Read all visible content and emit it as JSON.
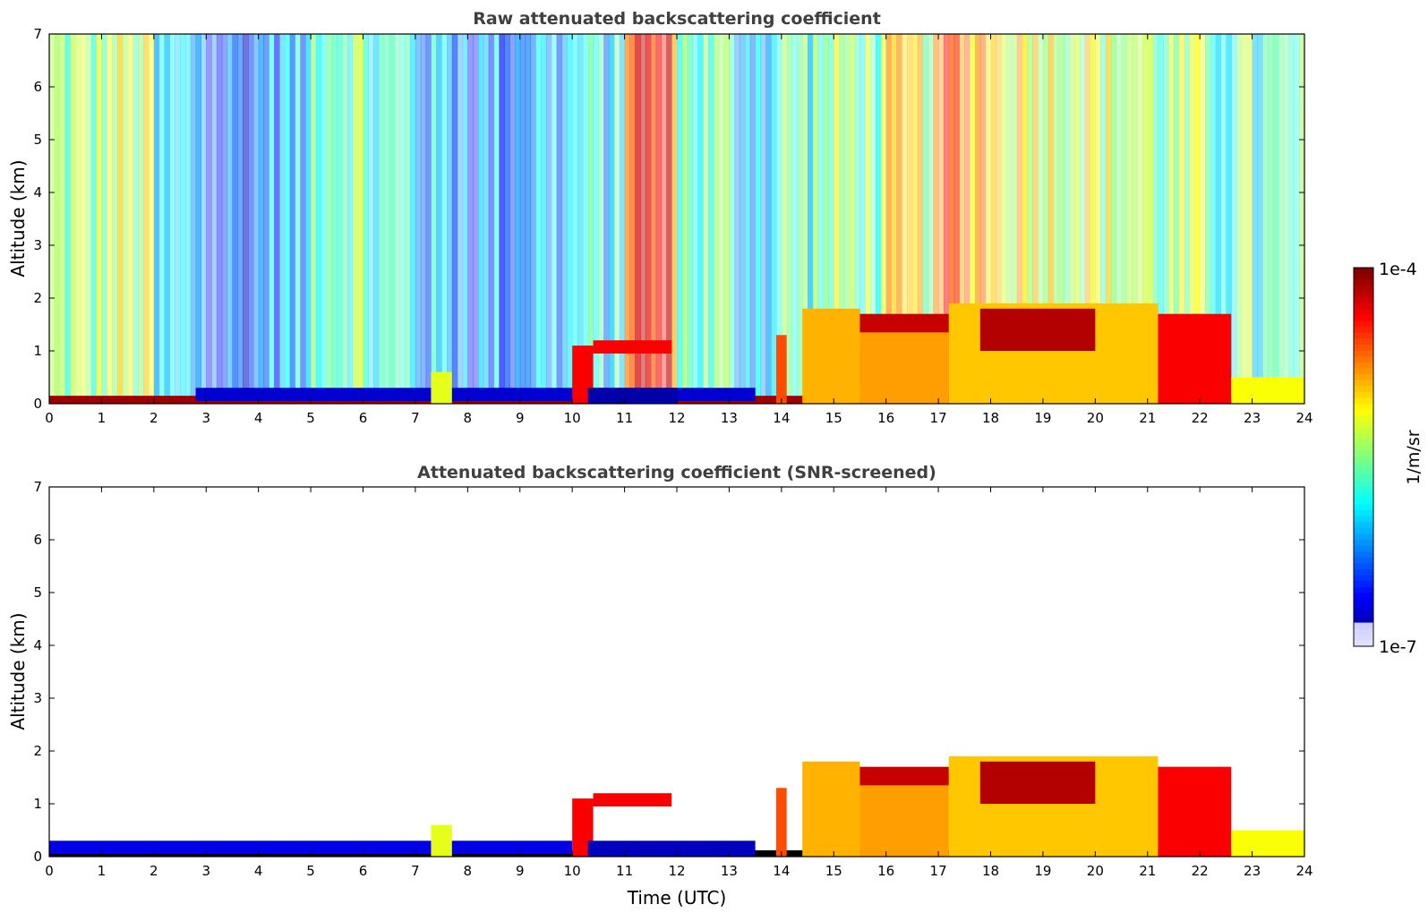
{
  "chart_data": [
    {
      "type": "heatmap",
      "title": "Raw attenuated backscattering coefficient",
      "xlabel": "",
      "ylabel": "Altitude (km)",
      "xlim": [
        0,
        24
      ],
      "ylim": [
        0,
        7
      ],
      "xticks": [
        "0",
        "1",
        "2",
        "3",
        "4",
        "5",
        "6",
        "7",
        "8",
        "9",
        "10",
        "11",
        "12",
        "13",
        "14",
        "15",
        "16",
        "17",
        "18",
        "19",
        "20",
        "21",
        "22",
        "23",
        "24"
      ],
      "yticks": [
        "0",
        "1",
        "2",
        "3",
        "4",
        "5",
        "6",
        "7"
      ],
      "background_noise_level_by_hour": [
        0.5,
        0.55,
        0.3,
        0.2,
        0.28,
        0.5,
        0.4,
        0.3,
        0.25,
        0.3,
        0.35,
        0.85,
        0.45,
        0.35,
        0.45,
        0.5,
        0.6,
        0.75,
        0.65,
        0.6,
        0.55,
        0.5,
        0.45,
        0.4
      ],
      "features": [
        {
          "name": "surface layer",
          "x": [
            0,
            24
          ],
          "y": [
            0,
            0.15
          ],
          "level": 0.97
        },
        {
          "name": "boundary layer",
          "x": [
            2.8,
            13.5
          ],
          "y": [
            0.05,
            0.3
          ],
          "level": 0.08
        },
        {
          "name": "aerosol plume",
          "x": [
            7.3,
            7.7
          ],
          "y": [
            0,
            0.6
          ],
          "level": 0.6
        },
        {
          "name": "low cloud",
          "x": [
            10.0,
            10.4
          ],
          "y": [
            0,
            1.1
          ],
          "level": 0.88
        },
        {
          "name": "elevated cloud",
          "x": [
            10.4,
            11.9
          ],
          "y": [
            0.95,
            1.2
          ],
          "level": 0.88
        },
        {
          "name": "boundary layer",
          "x": [
            10.3,
            12.0
          ],
          "y": [
            0,
            0.3
          ],
          "level": 0.04
        },
        {
          "name": "cloud column",
          "x": [
            13.9,
            14.1
          ],
          "y": [
            0,
            1.3
          ],
          "level": 0.8
        },
        {
          "name": "aerosol column",
          "x": [
            14.4,
            15.5
          ],
          "y": [
            0,
            1.8
          ],
          "level": 0.7
        },
        {
          "name": "aerosol layer",
          "x": [
            15.5,
            17.2
          ],
          "y": [
            0,
            1.6
          ],
          "level": 0.72
        },
        {
          "name": "cloud top",
          "x": [
            15.5,
            17.2
          ],
          "y": [
            1.35,
            1.7
          ],
          "level": 0.93
        },
        {
          "name": "aerosol layer",
          "x": [
            17.2,
            21.2
          ],
          "y": [
            0,
            1.9
          ],
          "level": 0.68
        },
        {
          "name": "cloud top",
          "x": [
            17.8,
            20.0
          ],
          "y": [
            1.0,
            1.8
          ],
          "level": 0.95
        },
        {
          "name": "cloud column",
          "x": [
            21.2,
            22.6
          ],
          "y": [
            0,
            1.7
          ],
          "level": 0.88
        },
        {
          "name": "aerosol layer",
          "x": [
            22.6,
            24.0
          ],
          "y": [
            0,
            0.5
          ],
          "level": 0.62
        }
      ]
    },
    {
      "type": "heatmap",
      "title": "Attenuated backscattering coefficient (SNR-screened)",
      "xlabel": "Time (UTC)",
      "ylabel": "Altitude (km)",
      "xlim": [
        0,
        24
      ],
      "ylim": [
        0,
        7
      ],
      "xticks": [
        "0",
        "1",
        "2",
        "3",
        "4",
        "5",
        "6",
        "7",
        "8",
        "9",
        "10",
        "11",
        "12",
        "13",
        "14",
        "15",
        "16",
        "17",
        "18",
        "19",
        "20",
        "21",
        "22",
        "23",
        "24"
      ],
      "yticks": [
        "0",
        "1",
        "2",
        "3",
        "4",
        "5",
        "6",
        "7"
      ],
      "features": [
        {
          "name": "surface layer",
          "x": [
            0,
            24
          ],
          "y": [
            0,
            0.12
          ],
          "level": 0.0
        },
        {
          "name": "boundary layer",
          "x": [
            0,
            10.0
          ],
          "y": [
            0.05,
            0.3
          ],
          "level": 0.1
        },
        {
          "name": "aerosol plume",
          "x": [
            7.3,
            7.7
          ],
          "y": [
            0,
            0.6
          ],
          "level": 0.6
        },
        {
          "name": "low cloud",
          "x": [
            10.0,
            10.4
          ],
          "y": [
            0,
            1.1
          ],
          "level": 0.88
        },
        {
          "name": "elevated cloud",
          "x": [
            10.4,
            11.9
          ],
          "y": [
            0.95,
            1.2
          ],
          "level": 0.88
        },
        {
          "name": "boundary layer",
          "x": [
            10.3,
            13.5
          ],
          "y": [
            0,
            0.3
          ],
          "level": 0.06
        },
        {
          "name": "cloud column",
          "x": [
            13.9,
            14.1
          ],
          "y": [
            0,
            1.3
          ],
          "level": 0.8
        },
        {
          "name": "aerosol column",
          "x": [
            14.4,
            15.5
          ],
          "y": [
            0,
            1.8
          ],
          "level": 0.7
        },
        {
          "name": "aerosol layer",
          "x": [
            15.5,
            17.2
          ],
          "y": [
            0,
            1.6
          ],
          "level": 0.72
        },
        {
          "name": "cloud top",
          "x": [
            15.5,
            17.2
          ],
          "y": [
            1.35,
            1.7
          ],
          "level": 0.93
        },
        {
          "name": "aerosol layer",
          "x": [
            17.2,
            21.2
          ],
          "y": [
            0,
            1.9
          ],
          "level": 0.68
        },
        {
          "name": "cloud top",
          "x": [
            17.8,
            20.0
          ],
          "y": [
            1.0,
            1.8
          ],
          "level": 0.95
        },
        {
          "name": "cloud column",
          "x": [
            21.2,
            22.6
          ],
          "y": [
            0,
            1.7
          ],
          "level": 0.88
        },
        {
          "name": "aerosol layer",
          "x": [
            22.6,
            24.0
          ],
          "y": [
            0,
            0.5
          ],
          "level": 0.62
        }
      ]
    }
  ],
  "colorbar": {
    "max_label": "1e-4",
    "min_label": "1e-7",
    "unit_label": "1/m/sr",
    "colormap": "jet"
  }
}
